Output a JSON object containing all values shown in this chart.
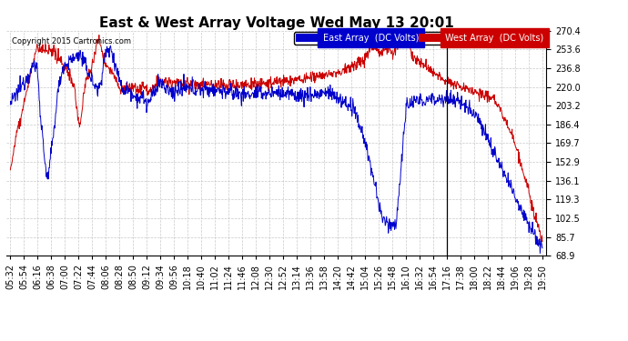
{
  "title": "East & West Array Voltage Wed May 13 20:01",
  "copyright": "Copyright 2015 Cartronics.com",
  "legend_east": "East Array  (DC Volts)",
  "legend_west": "West Array  (DC Volts)",
  "east_color": "#0000cc",
  "west_color": "#cc0000",
  "background_color": "#ffffff",
  "plot_bg_color": "#ffffff",
  "grid_color": "#bbbbbb",
  "ylim": [
    68.9,
    270.4
  ],
  "yticks": [
    68.9,
    85.7,
    102.5,
    119.3,
    136.1,
    152.9,
    169.7,
    186.4,
    203.2,
    220.0,
    236.8,
    253.6,
    270.4
  ],
  "title_fontsize": 11,
  "tick_fontsize": 7,
  "line_width": 0.7,
  "figsize": [
    6.9,
    3.75
  ],
  "dpi": 100
}
